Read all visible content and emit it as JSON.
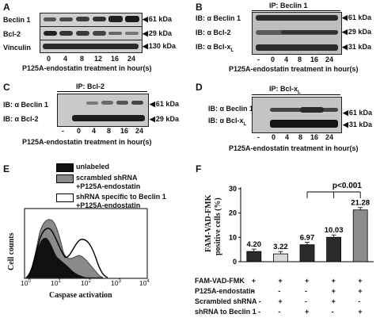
{
  "panels": {
    "A": {
      "letter": "A",
      "rows": [
        "Beclin 1",
        "Bcl-2",
        "Vinculin"
      ],
      "kda": [
        "61 kDa",
        "29 kDa",
        "130 kDa"
      ],
      "lanes": [
        "0",
        "4",
        "8",
        "12",
        "16",
        "24"
      ],
      "caption": "P125A-endostatin treatment in hour(s)"
    },
    "B": {
      "letter": "B",
      "ip": "IP: Beclin 1",
      "rows": [
        "IB: α Beclin 1",
        "IB: α Bcl-2",
        "IB: α Bcl-x"
      ],
      "sub": "L",
      "kda": [
        "61 kDa",
        "29 kDa",
        "31 kDa"
      ],
      "lanes": [
        "-",
        "0",
        "4",
        "8",
        "16",
        "24"
      ],
      "caption": "P125A-endostatin treatment in hour(s)"
    },
    "C": {
      "letter": "C",
      "ip": "IP: Bcl-2",
      "rows": [
        "IB: α Beclin 1",
        "IB: α Bcl-2"
      ],
      "kda": [
        "61 kDa",
        "29 kDa"
      ],
      "lanes": [
        "-",
        "0",
        "4",
        "8",
        "16",
        "24"
      ],
      "caption": "P125A-endostatin treatment in hour(s)"
    },
    "D": {
      "letter": "D",
      "ip": "IP: Bcl-x",
      "ipsub": "L",
      "rows": [
        "IB: α Beclin 1",
        "IB: α Bcl-x"
      ],
      "sub": "L",
      "kda": [
        "61 kDa",
        "31 kDa"
      ],
      "lanes": [
        "-",
        "0",
        "4",
        "8",
        "16",
        "24"
      ],
      "caption": "P125A-endostatin treatment in hour(s)"
    },
    "E": {
      "letter": "E",
      "ylabel": "Cell counts",
      "xlabel": "Caspase activation",
      "legend": [
        "unlabeled",
        "scrambled shRNA",
        "+P125A-endostatin",
        "shRNA specific to Beclin 1",
        "+P125A-endostatin"
      ],
      "ticks": [
        "10",
        "10",
        "10",
        "10",
        "10"
      ],
      "exps": [
        "0",
        "1",
        "2",
        "3",
        "4"
      ]
    },
    "F": {
      "letter": "F",
      "ylabel_1": "FAM-VAD-FMK",
      "ylabel_2": "positive cells (%)",
      "sig": "p<0.001",
      "table_rows": [
        {
          "label": "FAM-VAD-FMK",
          "marks": [
            "+",
            "+",
            "+",
            "+",
            "+"
          ]
        },
        {
          "label": "P125A-endostatin",
          "marks": [
            "-",
            "-",
            "-",
            "+",
            "+"
          ]
        },
        {
          "label": "Scrambled shRNA -",
          "marks": [
            "",
            "+",
            "-",
            "+",
            "-"
          ]
        },
        {
          "label": "shRNA to Beclin 1 -",
          "marks": [
            "",
            "-",
            "+",
            "-",
            "+"
          ]
        }
      ]
    }
  },
  "chart_data": {
    "type": "bar",
    "categories": [
      "1",
      "2",
      "3",
      "4",
      "5"
    ],
    "values": [
      4.2,
      3.22,
      6.97,
      10.03,
      21.28
    ],
    "labels": [
      "4.20",
      "3.22",
      "6.97",
      "10.03",
      "21.28"
    ],
    "colors": [
      "#2a2a2a",
      "#d9d9d9",
      "#2a2a2a",
      "#2a2a2a",
      "#8c8c8c"
    ],
    "ylim": [
      0,
      30
    ],
    "yticks": [
      "0",
      "10",
      "20",
      "30"
    ]
  }
}
